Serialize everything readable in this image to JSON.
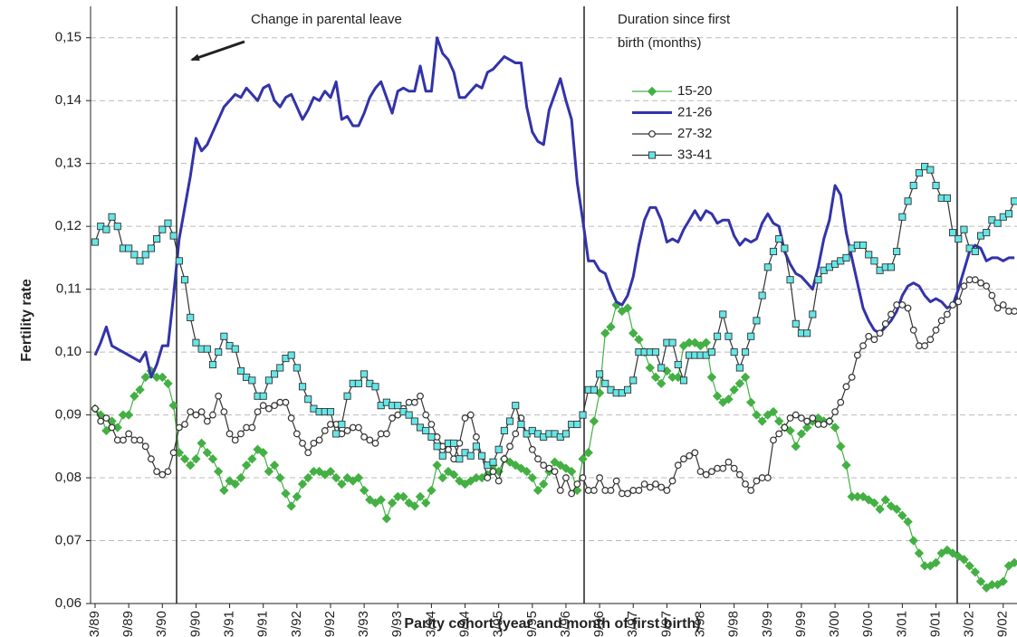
{
  "chart_data": {
    "type": "line",
    "x_label": "Parity cohort (year and month of first birth)",
    "y_label": "Fertility rate",
    "annotations": [
      "Change in parental leave"
    ],
    "legend_title": [
      "Duration since first",
      "birth (months)"
    ],
    "grid": true,
    "ylim": [
      0.06,
      0.155
    ],
    "yticks": [
      {
        "value": 0.06,
        "label": "0,06"
      },
      {
        "value": 0.07,
        "label": "0,07"
      },
      {
        "value": 0.08,
        "label": "0,08"
      },
      {
        "value": 0.09,
        "label": "0,09"
      },
      {
        "value": 0.1,
        "label": "0,10"
      },
      {
        "value": 0.11,
        "label": "0,11"
      },
      {
        "value": 0.12,
        "label": "0,12"
      },
      {
        "value": 0.13,
        "label": "0,13"
      },
      {
        "value": 0.14,
        "label": "0,14"
      },
      {
        "value": 0.15,
        "label": "0,15"
      }
    ],
    "categories": [
      "3/89",
      null,
      null,
      null,
      null,
      null,
      "9/89",
      null,
      null,
      null,
      null,
      null,
      "3/90",
      null,
      null,
      null,
      null,
      null,
      "9/90",
      null,
      null,
      null,
      null,
      null,
      "3/91",
      null,
      null,
      null,
      null,
      null,
      "9/91",
      null,
      null,
      null,
      null,
      null,
      "3/92",
      null,
      null,
      null,
      null,
      null,
      "9/92",
      null,
      null,
      null,
      null,
      null,
      "3/93",
      null,
      null,
      null,
      null,
      null,
      "9/93",
      null,
      null,
      null,
      null,
      null,
      "3/94",
      null,
      null,
      null,
      null,
      null,
      "9/94",
      null,
      null,
      null,
      null,
      null,
      "3/95",
      null,
      null,
      null,
      null,
      null,
      "9/95",
      null,
      null,
      null,
      null,
      null,
      "3/96",
      null,
      null,
      null,
      null,
      null,
      "9/96",
      null,
      null,
      null,
      null,
      null,
      "3/97",
      null,
      null,
      null,
      null,
      null,
      "9/97",
      null,
      null,
      null,
      null,
      null,
      "3/98",
      null,
      null,
      null,
      null,
      null,
      "9/98",
      null,
      null,
      null,
      null,
      null,
      "3/99",
      null,
      null,
      null,
      null,
      null,
      "9/99",
      null,
      null,
      null,
      null,
      null,
      "3/00",
      null,
      null,
      null,
      null,
      null,
      "9/00",
      null,
      null,
      null,
      null,
      null,
      "3/01",
      null,
      null,
      null,
      null,
      null,
      "9/01",
      null,
      null,
      null,
      null,
      null,
      "3/02",
      null,
      null,
      null,
      null,
      null,
      "9/02",
      null,
      null
    ],
    "series": [
      {
        "name": "15-20",
        "color": "#44b044",
        "marker": "diamond",
        "values": [
          0.091,
          0.09,
          0.0875,
          0.089,
          0.088,
          0.09,
          0.09,
          0.093,
          0.094,
          0.096,
          0.097,
          0.096,
          0.096,
          0.095,
          0.0915,
          0.084,
          0.083,
          0.082,
          0.083,
          0.0855,
          0.084,
          0.083,
          0.081,
          0.078,
          0.0795,
          0.079,
          0.08,
          0.082,
          0.083,
          0.0845,
          0.084,
          0.081,
          0.082,
          0.08,
          0.0775,
          0.0755,
          0.077,
          0.079,
          0.08,
          0.081,
          0.081,
          0.0805,
          0.081,
          0.08,
          0.079,
          0.08,
          0.0795,
          0.08,
          0.078,
          0.0765,
          0.076,
          0.0765,
          0.0735,
          0.076,
          0.077,
          0.077,
          0.076,
          0.0755,
          0.077,
          0.076,
          0.078,
          0.082,
          0.08,
          0.081,
          0.0805,
          0.0795,
          0.079,
          0.0795,
          0.08,
          0.08,
          0.0805,
          0.082,
          0.081,
          0.083,
          0.0825,
          0.082,
          0.0815,
          0.081,
          0.08,
          0.078,
          0.079,
          0.081,
          0.0825,
          0.082,
          0.0815,
          0.081,
          0.078,
          0.083,
          0.084,
          0.089,
          0.0935,
          0.103,
          0.104,
          0.1075,
          0.1065,
          0.107,
          0.103,
          0.102,
          0.1,
          0.0975,
          0.096,
          0.095,
          0.097,
          0.096,
          0.096,
          0.101,
          0.1015,
          0.1015,
          0.101,
          0.1015,
          0.096,
          0.093,
          0.092,
          0.0925,
          0.094,
          0.095,
          0.096,
          0.092,
          0.09,
          0.089,
          0.09,
          0.0905,
          0.089,
          0.088,
          0.0875,
          0.085,
          0.087,
          0.088,
          0.089,
          0.0895,
          0.089,
          0.089,
          0.088,
          0.085,
          0.082,
          0.077,
          0.077,
          0.077,
          0.0765,
          0.076,
          0.075,
          0.0765,
          0.0755,
          0.075,
          0.074,
          0.073,
          0.07,
          0.068,
          0.066,
          0.066,
          0.0665,
          0.068,
          0.0685,
          0.068,
          0.0675,
          0.067,
          0.066,
          0.065,
          0.0635,
          0.0625,
          0.063,
          0.063,
          0.0635,
          0.066,
          0.0665
        ]
      },
      {
        "name": "21-26",
        "color": "#3333aa",
        "marker": "none",
        "values": [
          0.0995,
          0.1015,
          0.104,
          0.101,
          0.1005,
          0.1,
          0.0995,
          0.099,
          0.0985,
          0.1,
          0.096,
          0.098,
          0.101,
          0.101,
          0.109,
          0.118,
          0.123,
          0.128,
          0.134,
          0.132,
          0.133,
          0.135,
          0.137,
          0.139,
          0.14,
          0.141,
          0.1405,
          0.142,
          0.141,
          0.14,
          0.142,
          0.1425,
          0.14,
          0.139,
          0.1405,
          0.141,
          0.139,
          0.137,
          0.1385,
          0.1405,
          0.14,
          0.1415,
          0.1405,
          0.143,
          0.137,
          0.1375,
          0.136,
          0.136,
          0.138,
          0.1405,
          0.142,
          0.143,
          0.1405,
          0.138,
          0.1415,
          0.142,
          0.1415,
          0.1415,
          0.1455,
          0.1415,
          0.1415,
          0.15,
          0.1475,
          0.1465,
          0.1445,
          0.1405,
          0.1405,
          0.1415,
          0.1425,
          0.142,
          0.1445,
          0.145,
          0.146,
          0.147,
          0.1465,
          0.146,
          0.146,
          0.139,
          0.135,
          0.1335,
          0.133,
          0.1385,
          0.141,
          0.1435,
          0.14,
          0.137,
          0.127,
          0.121,
          0.1145,
          0.1145,
          0.113,
          0.1125,
          0.11,
          0.108,
          0.1075,
          0.109,
          0.112,
          0.117,
          0.121,
          0.123,
          0.123,
          0.121,
          0.1175,
          0.118,
          0.1175,
          0.1195,
          0.121,
          0.1225,
          0.121,
          0.1225,
          0.122,
          0.1205,
          0.121,
          0.121,
          0.1185,
          0.117,
          0.118,
          0.1175,
          0.118,
          0.1205,
          0.122,
          0.1205,
          0.12,
          0.116,
          0.114,
          0.1125,
          0.112,
          0.111,
          0.11,
          0.1135,
          0.118,
          0.121,
          0.1265,
          0.125,
          0.119,
          0.115,
          0.111,
          0.107,
          0.105,
          0.1035,
          0.103,
          0.104,
          0.105,
          0.1065,
          0.109,
          0.1105,
          0.111,
          0.1105,
          0.109,
          0.108,
          0.1085,
          0.108,
          0.107,
          0.1075,
          0.11,
          0.113,
          0.116,
          0.117,
          0.1165,
          0.1145,
          0.115,
          0.115,
          0.1145,
          0.115,
          0.115
        ]
      },
      {
        "name": "27-32",
        "color": "#333333",
        "marker": "circle",
        "values": [
          0.091,
          0.089,
          0.0895,
          0.088,
          0.086,
          0.086,
          0.087,
          0.086,
          0.086,
          0.085,
          0.083,
          0.081,
          0.0805,
          0.081,
          0.084,
          0.088,
          0.0885,
          0.0905,
          0.09,
          0.0905,
          0.089,
          0.09,
          0.093,
          0.0905,
          0.087,
          0.086,
          0.087,
          0.088,
          0.088,
          0.0905,
          0.0915,
          0.091,
          0.0915,
          0.092,
          0.092,
          0.0895,
          0.087,
          0.0855,
          0.084,
          0.0855,
          0.086,
          0.0875,
          0.0885,
          0.0885,
          0.087,
          0.0875,
          0.088,
          0.088,
          0.0865,
          0.086,
          0.0855,
          0.087,
          0.087,
          0.0895,
          0.09,
          0.091,
          0.092,
          0.092,
          0.093,
          0.09,
          0.0885,
          0.0865,
          0.085,
          0.0845,
          0.083,
          0.0855,
          0.0895,
          0.09,
          0.0865,
          0.0835,
          0.08,
          0.081,
          0.0795,
          0.083,
          0.085,
          0.087,
          0.0895,
          0.087,
          0.0845,
          0.083,
          0.082,
          0.0815,
          0.081,
          0.078,
          0.08,
          0.0775,
          0.079,
          0.08,
          0.078,
          0.078,
          0.08,
          0.078,
          0.078,
          0.0795,
          0.0775,
          0.0775,
          0.078,
          0.078,
          0.079,
          0.0785,
          0.079,
          0.0785,
          0.078,
          0.0795,
          0.082,
          0.083,
          0.0835,
          0.084,
          0.081,
          0.0805,
          0.081,
          0.0815,
          0.0815,
          0.0825,
          0.0815,
          0.0805,
          0.079,
          0.078,
          0.0795,
          0.08,
          0.08,
          0.086,
          0.087,
          0.088,
          0.0895,
          0.09,
          0.0895,
          0.089,
          0.0895,
          0.0885,
          0.0885,
          0.089,
          0.0905,
          0.092,
          0.0945,
          0.096,
          0.0995,
          0.101,
          0.1025,
          0.102,
          0.103,
          0.1045,
          0.106,
          0.1075,
          0.1075,
          0.107,
          0.1035,
          0.101,
          0.101,
          0.102,
          0.1035,
          0.105,
          0.106,
          0.1075,
          0.108,
          0.1105,
          0.1115,
          0.1115,
          0.111,
          0.1105,
          0.109,
          0.107,
          0.1075,
          0.1065,
          0.1065
        ]
      },
      {
        "name": "33-41",
        "color": "#66e6e6",
        "marker": "square",
        "values": [
          0.1175,
          0.12,
          0.1195,
          0.1215,
          0.12,
          0.1165,
          0.1165,
          0.1155,
          0.1145,
          0.1155,
          0.1165,
          0.118,
          0.1195,
          0.1205,
          0.1185,
          0.1145,
          0.1115,
          0.1055,
          0.1015,
          0.1005,
          0.1005,
          0.098,
          0.1,
          0.1025,
          0.101,
          0.1005,
          0.097,
          0.096,
          0.0955,
          0.093,
          0.093,
          0.0955,
          0.0965,
          0.0975,
          0.099,
          0.0995,
          0.0975,
          0.0945,
          0.0925,
          0.091,
          0.0905,
          0.0905,
          0.0905,
          0.087,
          0.0885,
          0.093,
          0.095,
          0.095,
          0.0965,
          0.095,
          0.0945,
          0.0915,
          0.092,
          0.0915,
          0.0915,
          0.0905,
          0.09,
          0.089,
          0.088,
          0.0875,
          0.0865,
          0.085,
          0.0835,
          0.0855,
          0.0855,
          0.083,
          0.084,
          0.0835,
          0.085,
          0.0835,
          0.082,
          0.0825,
          0.0845,
          0.0875,
          0.089,
          0.0915,
          0.0885,
          0.087,
          0.0875,
          0.087,
          0.0865,
          0.087,
          0.087,
          0.0865,
          0.087,
          0.0885,
          0.0885,
          0.09,
          0.094,
          0.094,
          0.0965,
          0.095,
          0.094,
          0.0935,
          0.0935,
          0.094,
          0.0955,
          0.1,
          0.1,
          0.1,
          0.1,
          0.0975,
          0.1015,
          0.1015,
          0.098,
          0.0955,
          0.0995,
          0.0995,
          0.0995,
          0.0995,
          0.1,
          0.1025,
          0.106,
          0.1025,
          0.1,
          0.0975,
          0.1,
          0.1025,
          0.105,
          0.109,
          0.1135,
          0.116,
          0.118,
          0.1165,
          0.1115,
          0.1045,
          0.103,
          0.103,
          0.106,
          0.1115,
          0.113,
          0.1135,
          0.114,
          0.1145,
          0.115,
          0.1165,
          0.117,
          0.117,
          0.1155,
          0.1145,
          0.113,
          0.1135,
          0.1135,
          0.116,
          0.1215,
          0.124,
          0.1265,
          0.1285,
          0.1295,
          0.129,
          0.1265,
          0.1245,
          0.1245,
          0.119,
          0.118,
          0.1195,
          0.1165,
          0.116,
          0.1185,
          0.119,
          0.121,
          0.1205,
          0.1215,
          0.122,
          0.124
        ]
      }
    ]
  }
}
